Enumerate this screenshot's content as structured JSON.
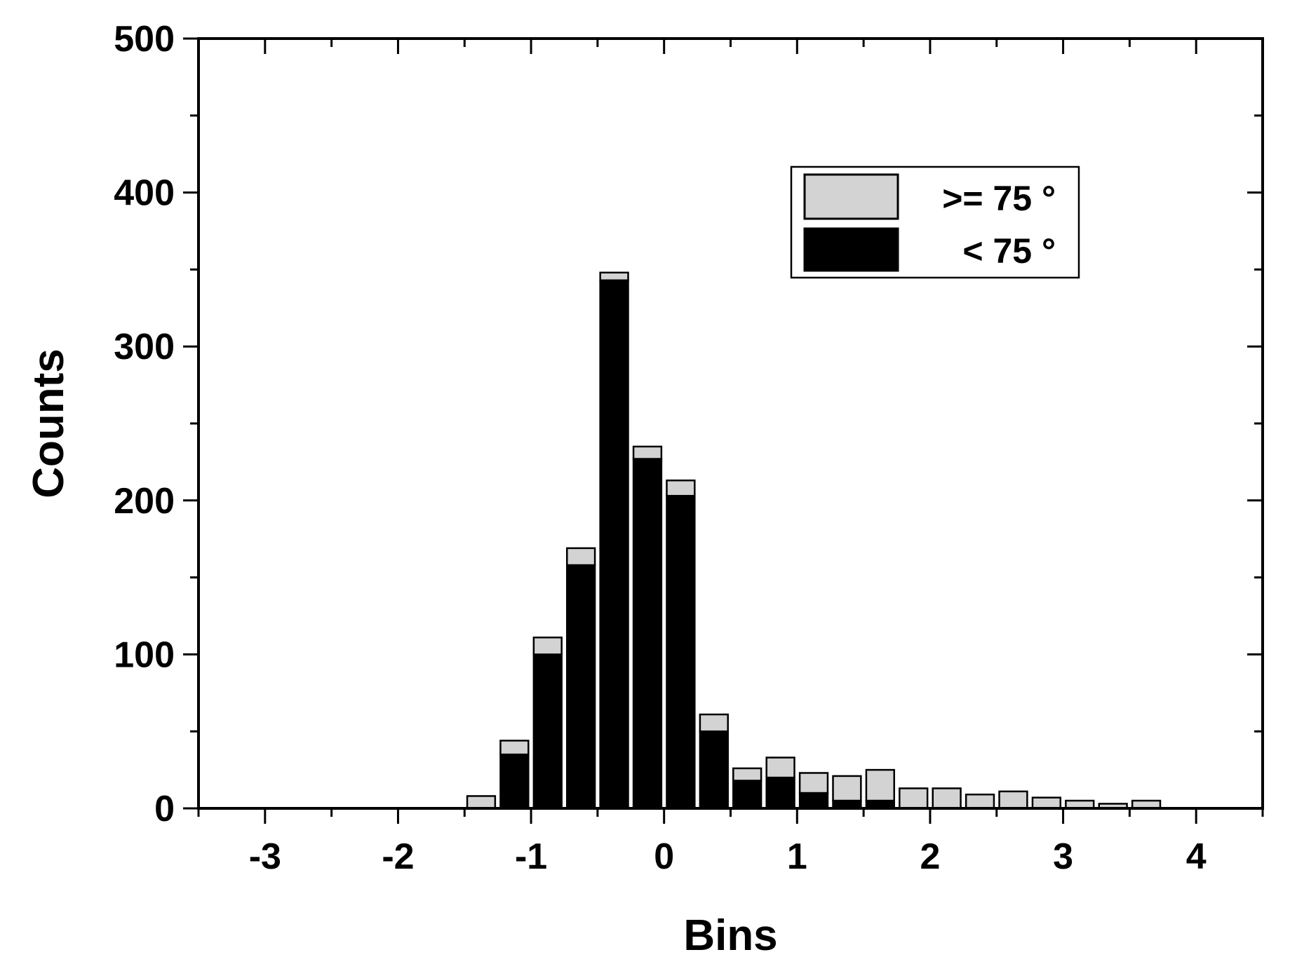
{
  "chart_data": {
    "type": "bar",
    "stacked": true,
    "title": "",
    "xlabel": "Bins",
    "ylabel": "Counts",
    "xlim": [
      -3.5,
      4.5
    ],
    "ylim": [
      0,
      500
    ],
    "xticks": [
      -3,
      -2,
      -1,
      0,
      1,
      2,
      3,
      4
    ],
    "yticks": [
      0,
      100,
      200,
      300,
      400,
      500
    ],
    "xtick_labels": [
      "-3",
      "-2",
      "-1",
      "0",
      "1",
      "2",
      "3",
      "4"
    ],
    "ytick_labels": [
      "0",
      "100",
      "200",
      "300",
      "400",
      "500"
    ],
    "bin_width": 0.25,
    "grid": false,
    "legend_position": "top-right",
    "x": [
      -1.375,
      -1.125,
      -0.875,
      -0.625,
      -0.375,
      -0.125,
      0.125,
      0.375,
      0.625,
      0.875,
      1.125,
      1.375,
      1.625,
      1.875,
      2.125,
      2.375,
      2.625,
      2.875,
      3.125,
      3.375,
      3.625
    ],
    "series": [
      {
        "name": "< 75 °",
        "color": "#000000",
        "values": [
          0,
          35,
          100,
          158,
          343,
          227,
          203,
          50,
          18,
          20,
          10,
          5,
          5,
          0,
          0,
          0,
          0,
          0,
          0,
          0,
          0
        ]
      },
      {
        "name": ">= 75 °",
        "color": "#d3d3d3",
        "values": [
          8,
          9,
          11,
          11,
          5,
          8,
          10,
          11,
          8,
          13,
          13,
          16,
          20,
          13,
          13,
          9,
          11,
          7,
          5,
          3,
          5
        ]
      }
    ]
  }
}
